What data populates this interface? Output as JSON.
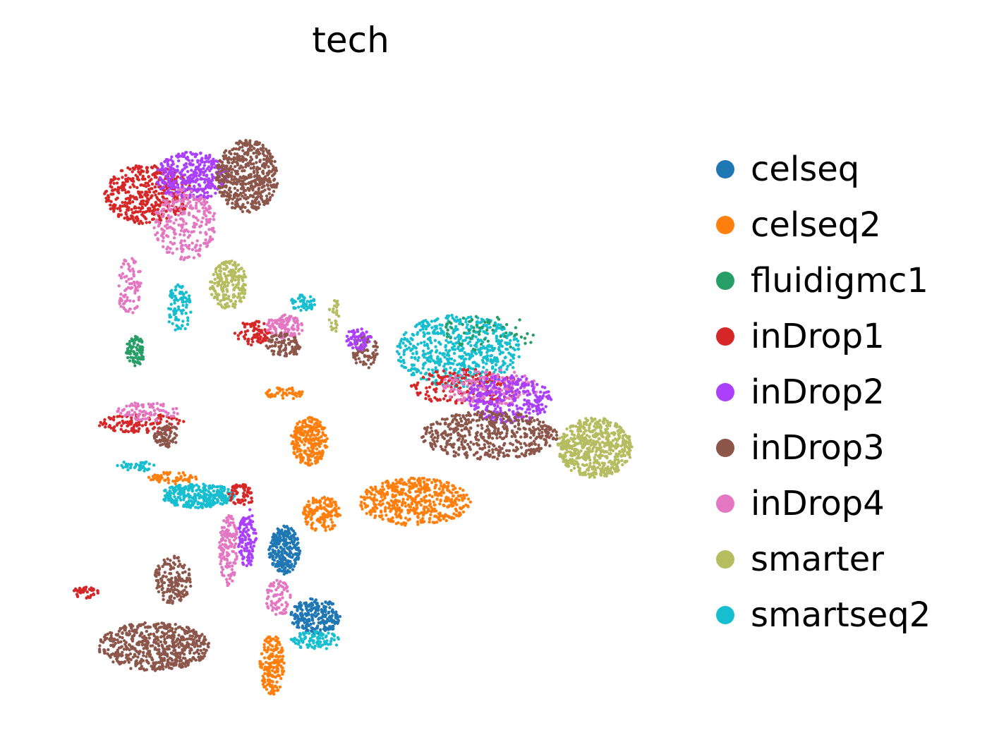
{
  "chart_data": {
    "type": "scatter",
    "title": "tech",
    "xlabel": "",
    "ylabel": "",
    "axes_visible": false,
    "grid": false,
    "legend_position": "right",
    "legend": [
      {
        "name": "celseq",
        "color": "#1f77b4"
      },
      {
        "name": "celseq2",
        "color": "#ff7f0e"
      },
      {
        "name": "fluidigmc1",
        "color": "#279e68"
      },
      {
        "name": "inDrop1",
        "color": "#d62728"
      },
      {
        "name": "inDrop2",
        "color": "#aa40fc"
      },
      {
        "name": "inDrop3",
        "color": "#8c564b"
      },
      {
        "name": "inDrop4",
        "color": "#e377c2"
      },
      {
        "name": "smarter",
        "color": "#b5bd61"
      },
      {
        "name": "smartseq2",
        "color": "#17becf"
      }
    ],
    "xlim": [
      0,
      100
    ],
    "ylim": [
      0,
      100
    ],
    "clusters": [
      {
        "series": "inDrop1",
        "x": 17,
        "y": 83,
        "rx": 7,
        "ry": 5,
        "n": 420
      },
      {
        "series": "inDrop2",
        "x": 24,
        "y": 86,
        "rx": 6,
        "ry": 4,
        "n": 380
      },
      {
        "series": "inDrop4",
        "x": 23,
        "y": 78,
        "rx": 5,
        "ry": 6,
        "n": 250
      },
      {
        "series": "inDrop3",
        "x": 33,
        "y": 86,
        "rx": 5,
        "ry": 6,
        "n": 520
      },
      {
        "series": "smarter",
        "x": 30,
        "y": 68,
        "rx": 3,
        "ry": 4,
        "n": 200
      },
      {
        "series": "fluidigmc1",
        "x": 15,
        "y": 57,
        "rx": 1.5,
        "ry": 2.5,
        "n": 80
      },
      {
        "series": "smartseq2",
        "x": 22,
        "y": 64,
        "rx": 2,
        "ry": 4,
        "n": 90
      },
      {
        "series": "inDrop4",
        "x": 14,
        "y": 68,
        "rx": 2,
        "ry": 5,
        "n": 90
      },
      {
        "series": "inDrop1",
        "x": 34,
        "y": 60,
        "rx": 3,
        "ry": 2,
        "n": 80
      },
      {
        "series": "inDrop4",
        "x": 39,
        "y": 61,
        "rx": 3,
        "ry": 2,
        "n": 110
      },
      {
        "series": "inDrop3",
        "x": 39,
        "y": 58,
        "rx": 3,
        "ry": 2,
        "n": 90
      },
      {
        "series": "smartseq2",
        "x": 42,
        "y": 65,
        "rx": 2,
        "ry": 1.5,
        "n": 50
      },
      {
        "series": "smarter",
        "x": 47,
        "y": 63,
        "rx": 0.8,
        "ry": 3,
        "n": 30
      },
      {
        "series": "inDrop3",
        "x": 52,
        "y": 57,
        "rx": 2,
        "ry": 3,
        "n": 70
      },
      {
        "series": "inDrop2",
        "x": 51,
        "y": 59,
        "rx": 2,
        "ry": 2,
        "n": 60
      },
      {
        "series": "smartseq2",
        "x": 67,
        "y": 57,
        "rx": 10,
        "ry": 6,
        "n": 620
      },
      {
        "series": "inDrop1",
        "x": 68,
        "y": 51,
        "rx": 9,
        "ry": 3,
        "n": 180
      },
      {
        "series": "inDrop4",
        "x": 72,
        "y": 51,
        "rx": 8,
        "ry": 3,
        "n": 170
      },
      {
        "series": "inDrop2",
        "x": 75,
        "y": 49,
        "rx": 7,
        "ry": 4,
        "n": 280
      },
      {
        "series": "inDrop3",
        "x": 72,
        "y": 43,
        "rx": 11,
        "ry": 4,
        "n": 500
      },
      {
        "series": "fluidigmc1",
        "x": 72,
        "y": 60,
        "rx": 8,
        "ry": 3,
        "n": 60
      },
      {
        "series": "smarter",
        "x": 89,
        "y": 41,
        "rx": 6,
        "ry": 5,
        "n": 560
      },
      {
        "series": "celseq2",
        "x": 43,
        "y": 42,
        "rx": 3,
        "ry": 4,
        "n": 260
      },
      {
        "series": "celseq2",
        "x": 39,
        "y": 50,
        "rx": 3,
        "ry": 1,
        "n": 50
      },
      {
        "series": "celseq2",
        "x": 60,
        "y": 32,
        "rx": 9,
        "ry": 4,
        "n": 500
      },
      {
        "series": "inDrop1",
        "x": 16,
        "y": 45,
        "rx": 7,
        "ry": 1.6,
        "n": 120
      },
      {
        "series": "inDrop4",
        "x": 17,
        "y": 47,
        "rx": 5,
        "ry": 1.6,
        "n": 80
      },
      {
        "series": "inDrop3",
        "x": 20,
        "y": 43,
        "rx": 2,
        "ry": 2,
        "n": 70
      },
      {
        "series": "celseq2",
        "x": 21,
        "y": 36,
        "rx": 4,
        "ry": 1,
        "n": 60
      },
      {
        "series": "smartseq2",
        "x": 15,
        "y": 38,
        "rx": 3,
        "ry": 1,
        "n": 40
      },
      {
        "series": "smartseq2",
        "x": 25,
        "y": 33,
        "rx": 6,
        "ry": 2,
        "n": 300
      },
      {
        "series": "inDrop3",
        "x": 21,
        "y": 19,
        "rx": 3,
        "ry": 4,
        "n": 160
      },
      {
        "series": "inDrop3",
        "x": 18,
        "y": 8,
        "rx": 9,
        "ry": 4,
        "n": 560
      },
      {
        "series": "inDrop1",
        "x": 7,
        "y": 17,
        "rx": 2,
        "ry": 1,
        "n": 40
      },
      {
        "series": "inDrop4",
        "x": 30,
        "y": 24,
        "rx": 1.5,
        "ry": 6,
        "n": 140
      },
      {
        "series": "inDrop2",
        "x": 33,
        "y": 26,
        "rx": 1.5,
        "ry": 5,
        "n": 120
      },
      {
        "series": "inDrop1",
        "x": 32,
        "y": 33,
        "rx": 2,
        "ry": 2,
        "n": 60
      },
      {
        "series": "celseq",
        "x": 39,
        "y": 24,
        "rx": 2.5,
        "ry": 4,
        "n": 250
      },
      {
        "series": "celseq",
        "x": 44,
        "y": 13,
        "rx": 4,
        "ry": 3,
        "n": 230
      },
      {
        "series": "celseq2",
        "x": 45,
        "y": 30,
        "rx": 3,
        "ry": 3,
        "n": 160
      },
      {
        "series": "celseq2",
        "x": 37,
        "y": 5,
        "rx": 2,
        "ry": 5,
        "n": 180
      },
      {
        "series": "inDrop4",
        "x": 38,
        "y": 16,
        "rx": 2,
        "ry": 3,
        "n": 70
      },
      {
        "series": "smartseq2",
        "x": 44,
        "y": 9,
        "rx": 4,
        "ry": 1.5,
        "n": 90
      }
    ]
  }
}
